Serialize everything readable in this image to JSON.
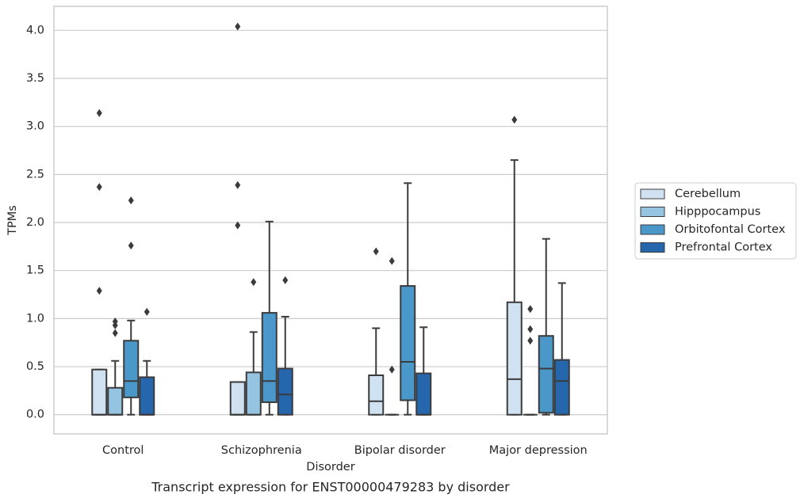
{
  "chart_data": {
    "type": "box",
    "title": "Transcript expression for ENST00000479283 by disorder",
    "x_label": "Disorder",
    "y_label": "TPMs",
    "categories": [
      "Control",
      "Schizophrenia",
      "Bipolar disorder",
      "Major depression"
    ],
    "ylim": [
      -0.2,
      4.25
    ],
    "yticks": [
      {
        "value": 0,
        "label": "0.0"
      },
      0.5,
      {
        "value": 1,
        "label": "1.0"
      },
      1.5,
      {
        "value": 2,
        "label": "2.0"
      },
      2.5,
      {
        "value": 3,
        "label": "3.0"
      },
      3.5,
      {
        "value": 4,
        "label": "4.0"
      }
    ],
    "grid": true,
    "legend": "right",
    "series": [
      {
        "name": "Cerebellum",
        "color": "#d0e1f2",
        "boxes": [
          {
            "whislo": 0,
            "q1": 0,
            "med": 0,
            "q3": 0.47,
            "whishi": 0.47,
            "fliers": [
              3.14,
              2.37,
              1.29
            ]
          },
          {
            "whislo": 0,
            "q1": 0,
            "med": 0,
            "q3": 0.34,
            "whishi": 0.34,
            "fliers": [
              4.04,
              2.39,
              1.97
            ]
          },
          {
            "whislo": 0,
            "q1": 0,
            "med": 0.14,
            "q3": 0.41,
            "whishi": 0.9,
            "fliers": [
              1.7
            ]
          },
          {
            "whislo": 0,
            "q1": 0,
            "med": 0.37,
            "q3": 1.17,
            "whishi": 2.65,
            "fliers": [
              3.07
            ]
          }
        ]
      },
      {
        "name": "Hipppocampus",
        "color": "#94c4df",
        "boxes": [
          {
            "whislo": 0,
            "q1": 0,
            "med": 0,
            "q3": 0.28,
            "whishi": 0.56,
            "fliers": [
              0.85,
              0.93,
              0.97
            ]
          },
          {
            "whislo": 0,
            "q1": 0,
            "med": 0,
            "q3": 0.44,
            "whishi": 0.86,
            "fliers": [
              1.38
            ]
          },
          {
            "whislo": 0,
            "q1": 0,
            "med": 0,
            "q3": 0,
            "whishi": 0,
            "fliers": [
              1.6,
              0.47
            ]
          },
          {
            "whislo": 0,
            "q1": 0,
            "med": 0,
            "q3": 0,
            "whishi": 0,
            "fliers": [
              1.1,
              0.89,
              0.77
            ]
          }
        ]
      },
      {
        "name": "Orbitofontal Cortex",
        "color": "#4a98c9",
        "boxes": [
          {
            "whislo": 0,
            "q1": 0.18,
            "med": 0.35,
            "q3": 0.77,
            "whishi": 0.98,
            "fliers": [
              1.76,
              2.23
            ]
          },
          {
            "whislo": 0,
            "q1": 0.13,
            "med": 0.35,
            "q3": 1.06,
            "whishi": 2.01,
            "fliers": []
          },
          {
            "whislo": 0,
            "q1": 0.15,
            "med": 0.55,
            "q3": 1.34,
            "whishi": 2.41,
            "fliers": []
          },
          {
            "whislo": 0,
            "q1": 0.02,
            "med": 0.48,
            "q3": 0.82,
            "whishi": 1.83,
            "fliers": []
          }
        ]
      },
      {
        "name": "Prefrontal Cortex",
        "color": "#2566ad",
        "boxes": [
          {
            "whislo": 0,
            "q1": 0,
            "med": 0,
            "q3": 0.39,
            "whishi": 0.56,
            "fliers": [
              1.07
            ]
          },
          {
            "whislo": 0,
            "q1": 0,
            "med": 0.21,
            "q3": 0.48,
            "whishi": 1.02,
            "fliers": [
              1.4
            ]
          },
          {
            "whislo": 0,
            "q1": 0,
            "med": 0,
            "q3": 0.43,
            "whishi": 0.91,
            "fliers": []
          },
          {
            "whislo": 0,
            "q1": 0,
            "med": 0.35,
            "q3": 0.57,
            "whishi": 1.37,
            "fliers": []
          }
        ]
      }
    ]
  }
}
